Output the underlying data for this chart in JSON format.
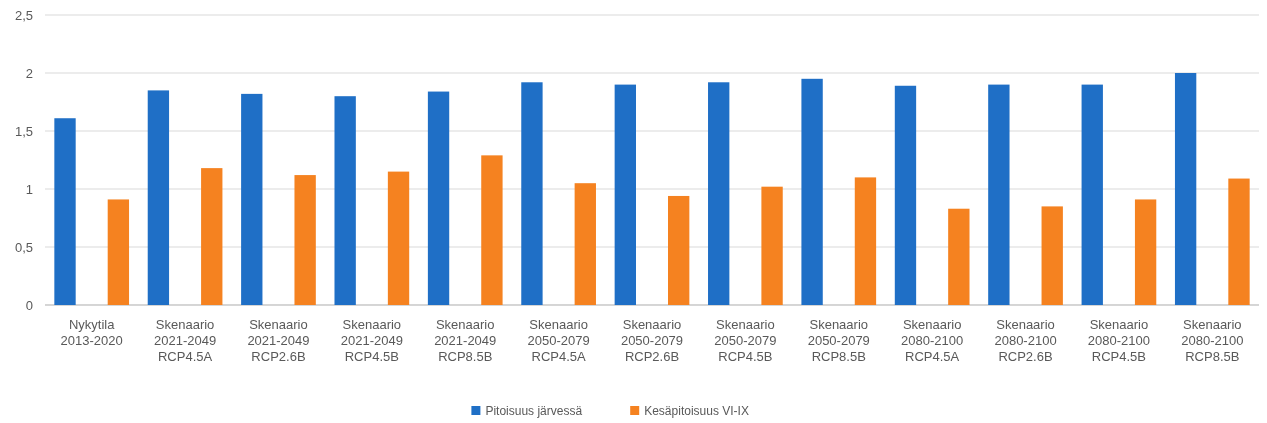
{
  "chart_data": {
    "type": "bar",
    "categories": [
      "Nykytila\n2013-2020",
      "Skenaario\n2021-2049\nRCP4.5A",
      "Skenaario\n2021-2049\nRCP2.6B",
      "Skenaario\n2021-2049\nRCP4.5B",
      "Skenaario\n2021-2049\nRCP8.5B",
      "Skenaario\n2050-2079\nRCP4.5A",
      "Skenaario\n2050-2079\nRCP2.6B",
      "Skenaario\n2050-2079\nRCP4.5B",
      "Skenaario\n2050-2079\nRCP8.5B",
      "Skenaario\n2080-2100\nRCP4.5A",
      "Skenaario\n2080-2100\nRCP2.6B",
      "Skenaario\n2080-2100\nRCP4.5B",
      "Skenaario\n2080-2100\nRCP8.5B"
    ],
    "series": [
      {
        "name": "Pitoisuus järvessä",
        "color": "#1f6fc6",
        "values": [
          1.61,
          1.85,
          1.82,
          1.8,
          1.84,
          1.92,
          1.9,
          1.92,
          1.95,
          1.89,
          1.9,
          1.9,
          2.0
        ]
      },
      {
        "name": "Kesäpitoisuus VI-IX",
        "color": "#f58220",
        "values": [
          0.91,
          1.18,
          1.12,
          1.15,
          1.29,
          1.05,
          0.94,
          1.02,
          1.1,
          0.83,
          0.85,
          0.91,
          1.09
        ]
      }
    ],
    "ylim": [
      0,
      2.5
    ],
    "yticks": [
      0,
      {
        "value": 0.5,
        "label": "0,5"
      },
      1,
      {
        "value": 1.5,
        "label": "1,5"
      },
      2,
      {
        "value": 2.5,
        "label": "2,5"
      }
    ],
    "grid": "y",
    "legend": "bottom"
  }
}
